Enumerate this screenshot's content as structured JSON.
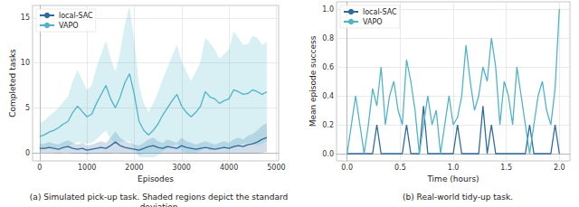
{
  "chart_data": [
    {
      "type": "line",
      "caption": "(a) Simulated pick-up task. Shaded regions depict the standard deviation.",
      "x_label": "Episodes",
      "y_label": "Completed tasks",
      "x": [
        0,
        100,
        200,
        300,
        400,
        500,
        600,
        700,
        800,
        900,
        1000,
        1100,
        1200,
        1300,
        1400,
        1500,
        1600,
        1700,
        1800,
        1900,
        2000,
        2100,
        2200,
        2300,
        2400,
        2500,
        2600,
        2700,
        2800,
        2900,
        3000,
        3100,
        3200,
        3300,
        3400,
        3500,
        3600,
        3700,
        3800,
        3900,
        4000,
        4100,
        4200,
        4300,
        4400,
        4500,
        4600,
        4700,
        4800
      ],
      "series": [
        {
          "name": "local-SAC",
          "color": "#2e6a9c",
          "values": [
            0.5,
            0.5,
            0.6,
            0.5,
            0.4,
            0.6,
            0.7,
            0.5,
            0.4,
            0.5,
            0.3,
            0.4,
            0.5,
            0.6,
            0.5,
            0.8,
            1.2,
            0.8,
            0.6,
            0.5,
            0.4,
            0.3,
            0.5,
            0.7,
            0.8,
            0.6,
            0.5,
            0.7,
            0.6,
            0.5,
            0.8,
            0.6,
            0.5,
            0.4,
            0.5,
            0.6,
            0.5,
            0.4,
            0.5,
            0.6,
            0.5,
            0.7,
            0.8,
            0.7,
            0.9,
            1.0,
            1.2,
            1.5,
            1.7
          ],
          "std": [
            0.5,
            0.5,
            0.6,
            0.5,
            0.5,
            0.6,
            0.7,
            0.6,
            0.5,
            0.6,
            0.5,
            0.5,
            0.6,
            0.7,
            0.6,
            0.9,
            1.2,
            0.9,
            0.7,
            0.6,
            0.5,
            0.5,
            0.6,
            0.8,
            0.9,
            0.7,
            0.6,
            0.8,
            0.7,
            0.6,
            0.9,
            0.7,
            0.6,
            0.5,
            0.6,
            0.7,
            0.6,
            0.5,
            0.6,
            0.7,
            0.6,
            0.8,
            0.9,
            0.8,
            1.0,
            1.1,
            1.3,
            1.5,
            1.6
          ]
        },
        {
          "name": "VAPO",
          "color": "#4fb4c8",
          "values": [
            1.8,
            2.0,
            2.3,
            2.5,
            2.8,
            3.2,
            3.5,
            4.5,
            5.2,
            4.6,
            4.0,
            4.3,
            5.5,
            6.5,
            7.5,
            6.0,
            5.0,
            6.2,
            7.8,
            8.8,
            6.5,
            3.5,
            2.5,
            2.0,
            2.5,
            3.2,
            4.2,
            5.0,
            5.8,
            6.5,
            5.2,
            4.5,
            4.0,
            4.5,
            5.2,
            6.8,
            6.2,
            6.0,
            5.5,
            5.8,
            6.0,
            7.0,
            6.8,
            6.5,
            6.6,
            7.0,
            6.8,
            6.5,
            6.8
          ],
          "std": [
            1.5,
            1.6,
            1.8,
            2,
            2.2,
            2.5,
            2.8,
            3.5,
            4,
            3.5,
            3,
            3.2,
            4,
            4.5,
            5,
            4.5,
            4,
            5,
            6.5,
            7.5,
            6,
            4,
            3,
            2.5,
            3,
            3.5,
            4,
            4.5,
            5,
            5.5,
            5,
            4.5,
            4,
            4.5,
            5,
            6,
            6,
            5.5,
            5,
            5.2,
            5.5,
            6.5,
            6,
            5.5,
            5.5,
            6,
            6,
            5.5,
            5.5
          ]
        }
      ],
      "xlim": [
        -150,
        5050
      ],
      "xticks": [
        0,
        1000,
        2000,
        3000,
        4000,
        5000
      ],
      "ylim": [
        -0.9,
        16.4
      ],
      "yticks": [
        0,
        5,
        10,
        15
      ],
      "grid": true,
      "legend": "upper left"
    },
    {
      "type": "line",
      "caption": "(b) Real-world tidy-up task.",
      "x_label": "Time (hours)",
      "y_label": "Mean episode success",
      "x": [
        0,
        0.04,
        0.08,
        0.12,
        0.16,
        0.2,
        0.24,
        0.28,
        0.32,
        0.36,
        0.4,
        0.44,
        0.48,
        0.52,
        0.56,
        0.6,
        0.64,
        0.68,
        0.72,
        0.76,
        0.8,
        0.84,
        0.88,
        0.92,
        0.96,
        1.0,
        1.04,
        1.08,
        1.12,
        1.16,
        1.2,
        1.24,
        1.28,
        1.32,
        1.36,
        1.4,
        1.44,
        1.48,
        1.52,
        1.56,
        1.6,
        1.64,
        1.68,
        1.72,
        1.76,
        1.8,
        1.84,
        1.88,
        1.92,
        1.96,
        2.0
      ],
      "series": [
        {
          "name": "local-SAC",
          "color": "#2e6a9c",
          "values": [
            0,
            0,
            0,
            0,
            0,
            0,
            0,
            0.2,
            0,
            0,
            0,
            0,
            0,
            0,
            0.2,
            0,
            0,
            0,
            0.33,
            0,
            0,
            0,
            0,
            0,
            0,
            0,
            0.2,
            0,
            0,
            0,
            0,
            0,
            0.33,
            0,
            0.2,
            0,
            0,
            0,
            0,
            0,
            0,
            0,
            0,
            0.2,
            0,
            0,
            0,
            0,
            0,
            0.2,
            0
          ]
        },
        {
          "name": "VAPO",
          "color": "#4fb4c8",
          "values": [
            0.0,
            0.2,
            0.4,
            0.2,
            0.0,
            0.2,
            0.45,
            0.33,
            0.6,
            0.2,
            0.4,
            0.5,
            0.3,
            0.2,
            0.65,
            0.5,
            0.3,
            0.0,
            0.2,
            0.4,
            0.2,
            0.3,
            0.0,
            0.2,
            0.4,
            0.2,
            0.25,
            0.4,
            0.75,
            0.5,
            0.3,
            0.4,
            0.6,
            0.5,
            0.8,
            0.6,
            0.2,
            0.5,
            0.4,
            0.2,
            0.6,
            0.4,
            0.2,
            0.0,
            0.2,
            0.4,
            0.5,
            0.3,
            0.2,
            0.45,
            1.0
          ]
        }
      ],
      "xlim": [
        -0.1,
        2.1
      ],
      "xticks": [
        {
          "value": 0,
          "label": "0.0"
        },
        {
          "value": 0.5,
          "label": "0.5"
        },
        {
          "value": 1,
          "label": "1.0"
        },
        {
          "value": 1.5,
          "label": "1.5"
        },
        {
          "value": 2,
          "label": "2.0"
        }
      ],
      "ylim": [
        -0.05,
        1.05
      ],
      "yticks": [
        {
          "value": 0,
          "label": "0.0"
        },
        {
          "value": 0.2,
          "label": "0.2"
        },
        {
          "value": 0.4,
          "label": "0.4"
        },
        {
          "value": 0.6,
          "label": "0.6"
        },
        {
          "value": 0.8,
          "label": "0.8"
        },
        {
          "value": 1,
          "label": "1.0"
        }
      ],
      "grid": true,
      "legend": "upper left"
    }
  ]
}
